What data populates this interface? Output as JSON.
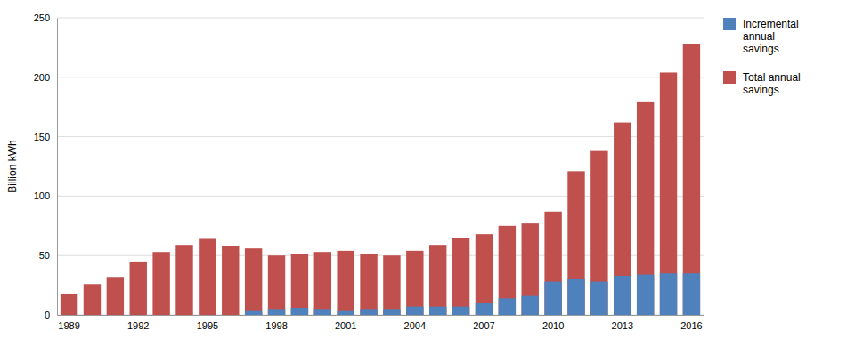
{
  "chart_data": {
    "type": "bar",
    "categories": [
      1989,
      null,
      null,
      1992,
      null,
      null,
      1995,
      null,
      null,
      1998,
      null,
      null,
      2001,
      null,
      null,
      2004,
      null,
      null,
      2007,
      null,
      null,
      2010,
      null,
      null,
      2013,
      null,
      null,
      2016
    ],
    "series": [
      {
        "name": "Total annual\nsavings",
        "color": "#c0504d",
        "values": [
          18,
          26,
          32,
          45,
          53,
          59,
          64,
          58,
          56,
          50,
          51,
          53,
          54,
          51,
          50,
          54,
          59,
          65,
          68,
          75,
          77,
          87,
          121,
          138,
          162,
          179,
          204,
          228
        ]
      },
      {
        "name": "Incremental\nannual\nsavings",
        "color": "#4f81bd",
        "values": [
          0,
          0,
          0,
          0,
          0,
          0,
          0,
          0,
          4,
          5,
          6,
          5,
          4,
          5,
          5,
          7,
          7,
          7,
          10,
          14,
          16,
          28,
          30,
          28,
          33,
          34,
          35,
          35
        ]
      }
    ],
    "ylabel": "Billion kWh",
    "ylim": [
      0,
      250
    ],
    "yticks": [
      0,
      50,
      100,
      150,
      200,
      250
    ],
    "grid": true,
    "stacked": false,
    "legend": "right"
  }
}
